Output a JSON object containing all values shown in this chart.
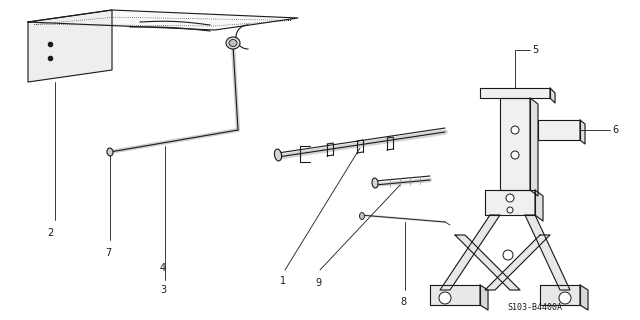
{
  "background_color": "#ffffff",
  "line_color": "#1a1a1a",
  "diagram_ref": "S103-B4400A",
  "fig_width": 6.4,
  "fig_height": 3.2,
  "dpi": 100
}
